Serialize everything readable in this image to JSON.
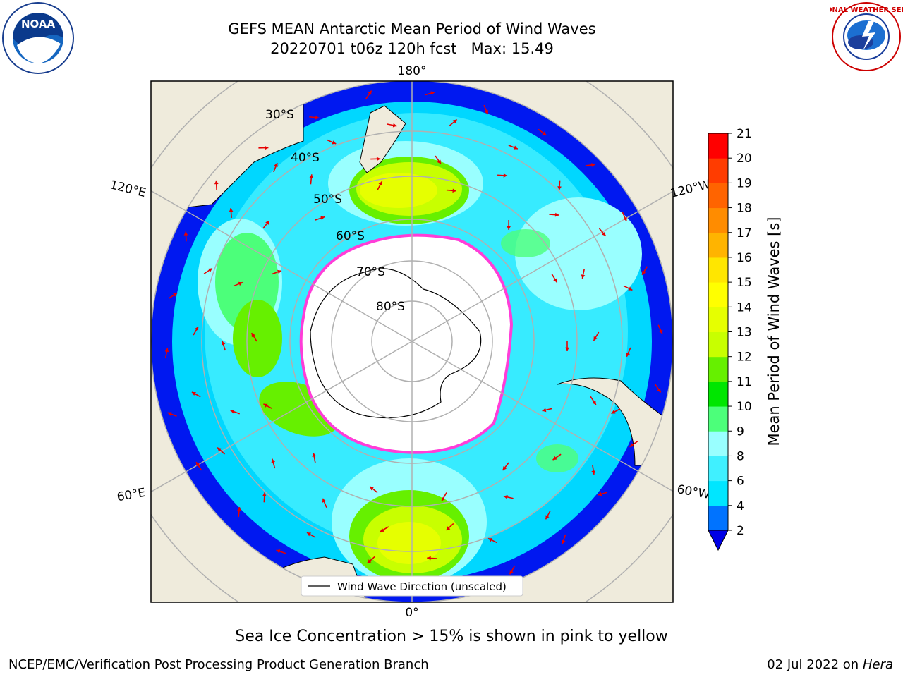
{
  "header": {
    "title_line1": "GEFS MEAN Antarctic Mean Period of Wind Waves",
    "title_line2": "20220701 t06z 120h fcst   Max: 15.49"
  },
  "logos": {
    "left": "NOAA",
    "right": "NATIONAL WEATHER SERVICE"
  },
  "map": {
    "projection": "south polar stereographic",
    "longitude_labels": {
      "top": "180°",
      "bottom": "0°",
      "left_upper": "120°E",
      "left_lower": "60°E",
      "right_upper": "120°W",
      "right_lower": "60°W"
    },
    "latitude_labels": [
      "30°S",
      "40°S",
      "50°S",
      "60°S",
      "70°S",
      "80°S"
    ],
    "legend": "Wind Wave Direction (unscaled)",
    "colors": {
      "land": "#efebdc",
      "sea_ice": "#ffffff",
      "ice_edge": "#ff3dd8",
      "arrow": "#e60000",
      "grid": "#b0b0b0"
    }
  },
  "colorbar": {
    "label": "Mean Period of Wind Waves [s]",
    "ticks": [
      "2",
      "4",
      "6",
      "8",
      "9",
      "10",
      "11",
      "12",
      "13",
      "14",
      "15",
      "16",
      "17",
      "18",
      "19",
      "20",
      "21"
    ],
    "colors": [
      "#0073ff",
      "#00e6ff",
      "#40f0ff",
      "#99ffff",
      "#4cff7a",
      "#00e600",
      "#66f000",
      "#c8ff00",
      "#e6ff00",
      "#ffff00",
      "#ffe600",
      "#ffb400",
      "#ff8c00",
      "#ff6400",
      "#ff3c00",
      "#ff0000"
    ],
    "extend_color": "#0000e6"
  },
  "caption": "Sea Ice Concentration > 15% is shown in pink to yellow",
  "footer": {
    "left": "NCEP/EMC/Verification Post Processing Product Generation Branch",
    "date": "02 Jul 2022 on",
    "host": "Hera"
  }
}
